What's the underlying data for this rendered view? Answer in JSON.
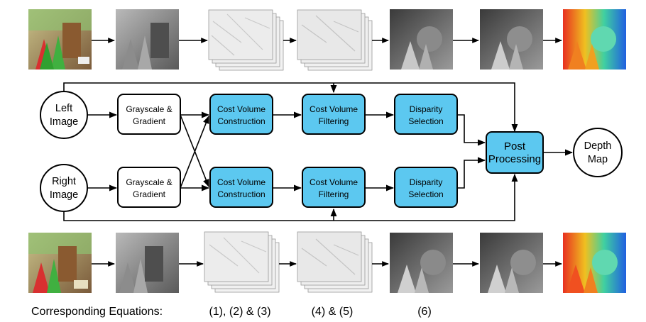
{
  "inputs": {
    "left": [
      "Left",
      "Image"
    ],
    "right": [
      "Right",
      "Image"
    ]
  },
  "stages": {
    "grayscale": [
      "Grayscale &",
      "Gradient"
    ],
    "construction": [
      "Cost Volume",
      "Construction"
    ],
    "filtering": [
      "Cost Volume",
      "Filtering"
    ],
    "selection": [
      "Disparity",
      "Selection"
    ]
  },
  "post_processing": [
    "Post",
    "Processing"
  ],
  "output": [
    "Depth",
    "Map"
  ],
  "equations": {
    "label": "Corresponding Equations:",
    "construction": "(1), (2) & (3)",
    "filtering": "(4) & (5)",
    "selection": "(6)"
  },
  "colors": {
    "highlight_fill": "#5cc8f0",
    "plain_fill": "#ffffff",
    "stroke": "#000000"
  },
  "thumbnails": {
    "top": [
      "left-color-image",
      "left-grayscale-image",
      "left-cost-volume-stack",
      "left-filtered-cost-stack",
      "left-raw-disparity",
      "left-refined-disparity",
      "left-colormap-depth"
    ],
    "bottom": [
      "right-color-image",
      "right-grayscale-image",
      "right-cost-volume-stack",
      "right-filtered-cost-stack",
      "right-raw-disparity",
      "right-refined-disparity",
      "right-colormap-depth"
    ]
  }
}
